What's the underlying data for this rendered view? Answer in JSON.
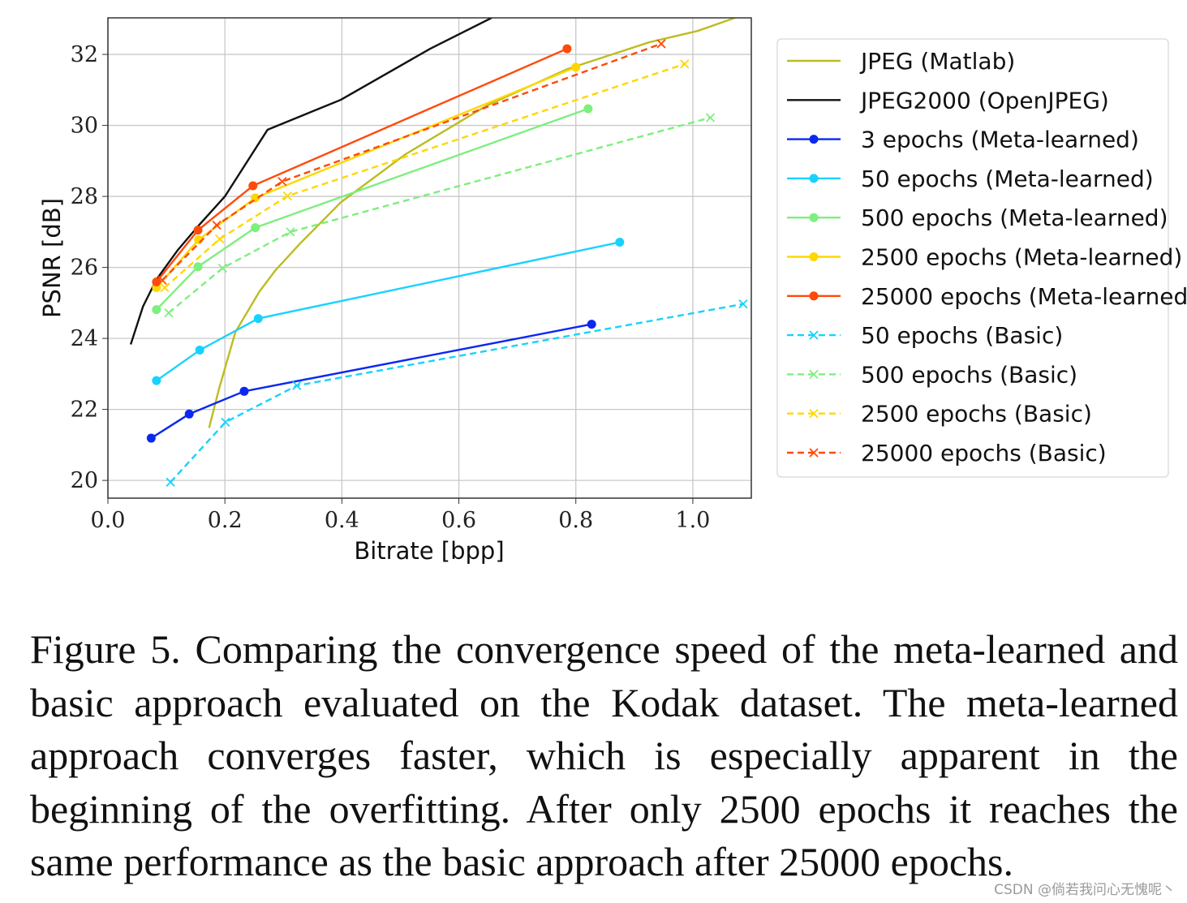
{
  "chart_data": {
    "type": "line",
    "xlabel": "Bitrate [bpp]",
    "ylabel": "PSNR [dB]",
    "xlim": [
      0,
      1.1
    ],
    "ylim": [
      19.5,
      33.03
    ],
    "xticks": [
      "0.0",
      "0.2",
      "0.4",
      "0.6",
      "0.8",
      "1.0"
    ],
    "yticks": [
      "20",
      "22",
      "24",
      "26",
      "28",
      "30",
      "32"
    ],
    "grid": true,
    "legend_position": "right-outside",
    "series": [
      {
        "name": "JPEG (Matlab)",
        "color": "#bcbd22",
        "style": "solid",
        "marker": "none",
        "x": [
          0.173,
          0.19,
          0.218,
          0.259,
          0.287,
          0.329,
          0.398,
          0.509,
          0.648,
          0.786,
          0.925,
          1.008,
          1.072
        ],
        "y": [
          21.48,
          22.58,
          24.18,
          25.32,
          25.93,
          26.68,
          27.83,
          29.19,
          30.56,
          31.59,
          32.34,
          32.66,
          33.03
        ]
      },
      {
        "name": "JPEG2000 (OpenJPEG)",
        "color": "#111111",
        "style": "solid",
        "marker": "none",
        "x": [
          0.039,
          0.06,
          0.083,
          0.12,
          0.153,
          0.2,
          0.273,
          0.398,
          0.551,
          0.656
        ],
        "y": [
          23.83,
          24.9,
          25.66,
          26.5,
          27.14,
          28.0,
          29.88,
          30.72,
          32.16,
          33.03
        ]
      },
      {
        "name": "3 epochs (Meta-learned)",
        "color": "#0a28f0",
        "style": "solid",
        "marker": "o",
        "x": [
          0.074,
          0.139,
          0.233,
          0.827
        ],
        "y": [
          21.19,
          21.87,
          22.51,
          24.4
        ]
      },
      {
        "name": "50 epochs (Meta-learned)",
        "color": "#17d2ff",
        "style": "solid",
        "marker": "o",
        "x": [
          0.083,
          0.157,
          0.257,
          0.875
        ],
        "y": [
          22.81,
          23.67,
          24.56,
          26.71
        ]
      },
      {
        "name": "500 epochs (Meta-learned)",
        "color": "#7def7d",
        "style": "solid",
        "marker": "o",
        "x": [
          0.083,
          0.154,
          0.252,
          0.821
        ],
        "y": [
          24.81,
          26.02,
          27.12,
          30.47
        ]
      },
      {
        "name": "2500 epochs (Meta-learned)",
        "color": "#ffd700",
        "style": "solid",
        "marker": "o",
        "x": [
          0.083,
          0.155,
          0.252,
          0.8
        ],
        "y": [
          25.43,
          26.78,
          27.96,
          31.64
        ]
      },
      {
        "name": "25000 epochs (Meta-learned)",
        "color": "#ff4a0a",
        "style": "solid",
        "marker": "o",
        "x": [
          0.083,
          0.154,
          0.248,
          0.785
        ],
        "y": [
          25.59,
          27.05,
          28.3,
          32.16
        ]
      },
      {
        "name": "50 epochs (Basic)",
        "color": "#17d2ff",
        "style": "dashed",
        "marker": "x",
        "x": [
          0.107,
          0.201,
          0.323,
          1.086
        ],
        "y": [
          19.95,
          21.64,
          22.67,
          24.97
        ]
      },
      {
        "name": "500 epochs (Basic)",
        "color": "#7def7d",
        "style": "dashed",
        "marker": "x",
        "x": [
          0.104,
          0.196,
          0.312,
          1.03
        ],
        "y": [
          24.72,
          25.98,
          27.0,
          30.22
        ]
      },
      {
        "name": "2500 epochs (Basic)",
        "color": "#ffd700",
        "style": "dashed",
        "marker": "x",
        "x": [
          0.097,
          0.191,
          0.307,
          0.986
        ],
        "y": [
          25.43,
          26.8,
          28.01,
          31.73
        ]
      },
      {
        "name": "25000 epochs (Basic)",
        "color": "#ff4a0a",
        "style": "dashed",
        "marker": "x",
        "x": [
          0.093,
          0.186,
          0.298,
          0.946
        ],
        "y": [
          25.64,
          27.19,
          28.42,
          32.3
        ]
      }
    ]
  },
  "caption": "Figure 5.  Comparing the convergence speed of the meta-learned and basic approach evaluated on the Kodak dataset.  The meta-learned approach converges faster, which is especially apparent in the beginning of the overfitting. After only 2500 epochs it reaches the same performance as the basic approach after 25000 epochs.",
  "watermark": "CSDN @倘若我问心无愧呢丶"
}
